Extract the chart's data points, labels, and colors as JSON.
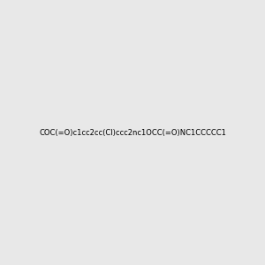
{
  "smiles": "COC(=O)c1cc2cc(Cl)ccc2nc1OCC(=O)NC1CCCCC1",
  "bg_color": "#e8e8e8",
  "bond_color": "#2d6b6b",
  "atom_colors": {
    "N": "#0000ff",
    "O": "#ff0000",
    "Cl": "#00cc00"
  },
  "figsize": [
    3.0,
    3.0
  ],
  "dpi": 100
}
